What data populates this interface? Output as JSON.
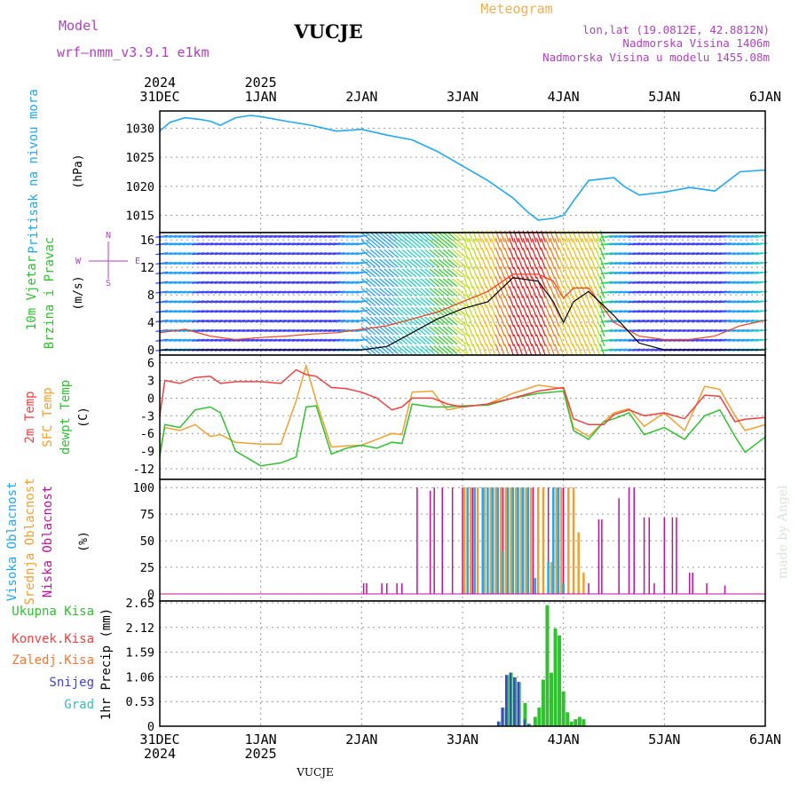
{
  "header": {
    "model_label": "Model",
    "model_name": "wrf–nmm_v3.9.1  e1km",
    "station": "VUCJE",
    "meteogram": "Meteogram",
    "lonlat": "lon,lat (19.0812E, 42.8812N)",
    "elevation": "Nadmorska Visina 1406m",
    "model_elevation": "Nadmorska Visina u modelu 1455.08m",
    "footer_station": "VUCJE",
    "credit": "made by Angel"
  },
  "colors": {
    "pressure": "#20a8f0",
    "wind_speed": "#000000",
    "gust": "#f04020",
    "temp2m": "#f04040",
    "sfc_temp": "#f0a030",
    "dewpoint": "#30c030",
    "high_cloud": "#20a8f0",
    "mid_cloud": "#f0a030",
    "low_cloud": "#c010a0",
    "total_precip": "#30c030",
    "conv_precip": "#f04040",
    "frz_precip": "#f07830",
    "snow": "#4040e0",
    "graupel": "#30c0c0",
    "title": "#000000",
    "purple_text": "#b040c0",
    "orange_text": "#f0b050"
  },
  "time_axis": {
    "top_ticks": [
      {
        "day": 0,
        "line1": "2024",
        "line2": "31DEC"
      },
      {
        "day": 1,
        "line1": "2025",
        "line2": "1JAN"
      },
      {
        "day": 2,
        "line1": "",
        "line2": "2JAN"
      },
      {
        "day": 3,
        "line1": "",
        "line2": "3JAN"
      },
      {
        "day": 4,
        "line1": "",
        "line2": "4JAN"
      },
      {
        "day": 5,
        "line1": "",
        "line2": "5JAN"
      },
      {
        "day": 6,
        "line1": "",
        "line2": "6JAN"
      }
    ],
    "bottom_ticks": [
      {
        "day": 0,
        "line1": "31DEC",
        "line2": "2024"
      },
      {
        "day": 1,
        "line1": "1JAN",
        "line2": "2025"
      },
      {
        "day": 2,
        "line1": "2JAN",
        "line2": ""
      },
      {
        "day": 3,
        "line1": "3JAN",
        "line2": ""
      },
      {
        "day": 4,
        "line1": "4JAN",
        "line2": ""
      },
      {
        "day": 5,
        "line1": "5JAN",
        "line2": ""
      },
      {
        "day": 6,
        "line1": "6JAN",
        "line2": ""
      }
    ]
  },
  "chart_data": [
    {
      "type": "line",
      "panel": "pressure",
      "labels": [
        "Pritisak na nivou mora"
      ],
      "unit": "(hPa)",
      "ylim": [
        1012.5,
        1032.5
      ],
      "yticks": [
        1015,
        1020,
        1025,
        1030
      ],
      "x": [
        0,
        0.1,
        0.25,
        0.4,
        0.5,
        0.6,
        0.75,
        0.9,
        1.0,
        1.25,
        1.5,
        1.75,
        2.0,
        2.25,
        2.5,
        2.75,
        3.0,
        3.25,
        3.5,
        3.65,
        3.75,
        3.9,
        4.0,
        4.1,
        4.25,
        4.5,
        4.6,
        4.75,
        5.0,
        5.25,
        5.5,
        5.75,
        6.0
      ],
      "series": [
        {
          "values": [
            1029.5,
            1031,
            1031.8,
            1031.5,
            1031.2,
            1030.5,
            1031.8,
            1032.2,
            1032,
            1031.2,
            1030.5,
            1029.5,
            1029.8,
            1028.8,
            1028,
            1026,
            1023.5,
            1021,
            1018,
            1015.5,
            1014.2,
            1014.5,
            1015,
            1017.5,
            1021,
            1021.5,
            1020,
            1018.5,
            1019,
            1019.8,
            1019.2,
            1022.5,
            1022.8
          ]
        }
      ]
    },
    {
      "type": "line",
      "panel": "wind",
      "labels": [
        "10m Vjetar",
        "Brzina i Pravac"
      ],
      "unit": "(m/s)",
      "ylim": [
        -0.5,
        16.8
      ],
      "yticks": [
        0,
        4,
        8,
        12,
        16
      ],
      "compass": [
        "N",
        "S",
        "W",
        "E"
      ],
      "x": [
        0,
        0.25,
        0.5,
        0.75,
        1.0,
        1.25,
        1.5,
        1.75,
        2.0,
        2.25,
        2.5,
        2.75,
        3.0,
        3.25,
        3.5,
        3.75,
        3.9,
        4.0,
        4.1,
        4.25,
        4.5,
        4.75,
        5.0,
        5.25,
        5.5,
        5.75,
        6.0
      ],
      "series": [
        {
          "values": [
            0,
            0,
            0,
            0,
            0,
            0,
            0,
            0,
            0,
            0.5,
            2.5,
            4.5,
            6,
            7,
            10.5,
            10,
            7,
            4,
            7,
            8.5,
            5,
            1,
            0,
            0,
            0,
            0,
            0
          ]
        },
        {
          "values": [
            2.5,
            3,
            2,
            1.5,
            1.8,
            2,
            2.3,
            2.5,
            3,
            3.5,
            4.5,
            5.5,
            7,
            8.5,
            11,
            11,
            10,
            7.5,
            9,
            9,
            4,
            2,
            1.5,
            1.5,
            2,
            3.5,
            4.3
          ]
        }
      ]
    },
    {
      "type": "line",
      "panel": "temperature",
      "labels": [
        "2m Temp",
        "SFC Temp",
        "dewpt Temp"
      ],
      "unit": "(C)",
      "ylim": [
        -13.5,
        7
      ],
      "yticks": [
        6,
        3,
        0,
        -3,
        -6,
        -9,
        -12
      ],
      "x": [
        0,
        0.05,
        0.2,
        0.35,
        0.5,
        0.6,
        0.75,
        1.0,
        1.2,
        1.35,
        1.45,
        1.55,
        1.7,
        1.85,
        2.0,
        2.15,
        2.3,
        2.4,
        2.5,
        2.7,
        2.85,
        3.0,
        3.25,
        3.5,
        3.75,
        4.0,
        4.1,
        4.25,
        4.4,
        4.5,
        4.65,
        4.8,
        5.0,
        5.2,
        5.4,
        5.55,
        5.7,
        5.8,
        6.0
      ],
      "series": [
        {
          "values": [
            -3,
            3,
            2.5,
            3.5,
            3.7,
            2.5,
            2.8,
            2.8,
            2.5,
            4.8,
            4,
            3.7,
            1.8,
            1.6,
            1,
            0,
            -2,
            -1.5,
            0,
            0,
            -1,
            -1.5,
            -1,
            0,
            1.2,
            1.8,
            -3.5,
            -4.5,
            -4.5,
            -2.8,
            -2,
            -3,
            -2.5,
            -3.5,
            0.5,
            0.3,
            -4,
            -3.6,
            -3.3
          ]
        },
        {
          "values": [
            -9,
            -5,
            -5.5,
            -4.5,
            -6.5,
            -6.2,
            -7.5,
            -7.8,
            -7.8,
            -0.5,
            5.5,
            -0.5,
            -8.3,
            -8.1,
            -8,
            -7,
            -6,
            -6.2,
            1,
            1.2,
            -2,
            -1.5,
            -1,
            0.8,
            2.2,
            1.6,
            -5,
            -6.5,
            -4,
            -2.5,
            -1.8,
            -4.8,
            -2.5,
            -5.5,
            2,
            1.5,
            -3,
            -5.5,
            -4.5
          ]
        },
        {
          "values": [
            -10,
            -4.5,
            -5,
            -2,
            -1.5,
            -2.5,
            -9,
            -11.5,
            -11,
            -10,
            -1.5,
            -1.3,
            -9.5,
            -8.5,
            -8,
            -8.5,
            -7.5,
            -7.7,
            -1,
            -1.5,
            -1.5,
            -1.3,
            -1.2,
            0,
            0.8,
            1.2,
            -5.5,
            -7,
            -4,
            -3.5,
            -2.5,
            -6.2,
            -5,
            -7,
            -3,
            -2,
            -6.5,
            -9.2,
            -6.6
          ]
        }
      ]
    },
    {
      "type": "bar",
      "panel": "clouds",
      "labels": [
        "Visoka Oblacnost",
        "Srednja Oblacnost",
        "Niska Oblacnost"
      ],
      "unit": "(%)",
      "ylim": [
        -5,
        101
      ],
      "yticks": [
        0,
        25,
        50,
        75,
        100
      ],
      "series": [
        {
          "name": "Visoka Oblacnost",
          "x": [
            3.05,
            3.12,
            3.2,
            3.25,
            3.3,
            3.35,
            3.4,
            3.45,
            3.5,
            3.55,
            3.6,
            3.65,
            3.72,
            3.85,
            3.9,
            3.95,
            4.0
          ],
          "values": [
            100,
            100,
            100,
            100,
            100,
            100,
            40,
            100,
            100,
            100,
            100,
            100,
            15,
            30,
            100,
            100,
            10
          ]
        },
        {
          "name": "Srednja Oblacnost",
          "x": [
            3.02,
            3.08,
            3.15,
            3.22,
            3.28,
            3.33,
            3.38,
            3.43,
            3.48,
            3.53,
            3.58,
            3.63,
            3.68,
            3.75,
            3.8,
            3.88,
            3.93,
            3.98,
            4.05,
            4.1,
            4.15,
            4.2
          ],
          "values": [
            100,
            100,
            100,
            100,
            100,
            100,
            100,
            100,
            100,
            100,
            100,
            100,
            100,
            100,
            100,
            30,
            100,
            100,
            100,
            100,
            58,
            20
          ]
        },
        {
          "name": "Niska Oblacnost",
          "x": [
            2.02,
            2.05,
            2.2,
            2.25,
            2.35,
            2.4,
            2.55,
            2.68,
            2.72,
            2.8,
            2.9,
            3.0,
            3.05,
            3.1,
            3.15,
            3.2,
            3.25,
            3.3,
            3.35,
            3.4,
            3.45,
            3.5,
            3.55,
            3.6,
            3.65,
            3.7,
            3.75,
            3.8,
            3.85,
            3.9,
            3.95,
            4.0,
            4.05,
            4.1,
            4.25,
            4.35,
            4.38,
            4.55,
            4.65,
            4.7,
            4.8,
            4.85,
            4.9,
            5.0,
            5.08,
            5.12,
            5.25,
            5.28,
            5.42,
            5.6
          ],
          "values": [
            10,
            10,
            10,
            10,
            10,
            10,
            100,
            97,
            100,
            100,
            100,
            100,
            100,
            100,
            100,
            100,
            100,
            100,
            100,
            100,
            100,
            100,
            100,
            100,
            100,
            100,
            100,
            100,
            100,
            100,
            100,
            100,
            100,
            100,
            10,
            70,
            70,
            90,
            100,
            100,
            72,
            72,
            10,
            72,
            72,
            72,
            20,
            20,
            10,
            8
          ]
        }
      ]
    },
    {
      "type": "bar",
      "panel": "precipitation",
      "labels": [
        "Ukupna Kisa",
        "Konvek.Kisa",
        "Zaledj.Kisa",
        "Snijeg",
        "Grad"
      ],
      "ylabel": "1hr Precip (mm)",
      "ylim": [
        0,
        2.65
      ],
      "yticks": [
        0,
        0.53,
        1.06,
        1.59,
        2.12,
        2.65
      ],
      "x": [
        3.36,
        3.4,
        3.44,
        3.48,
        3.52,
        3.56,
        3.62,
        3.66,
        3.72,
        3.76,
        3.8,
        3.84,
        3.88,
        3.92,
        3.96,
        4.0,
        4.04,
        4.08,
        4.12,
        4.16,
        4.2
      ],
      "series": [
        {
          "name": "Ukupna Kisa",
          "values": [
            0.1,
            0.4,
            1.1,
            1.15,
            1.05,
            0.95,
            0.5,
            0.05,
            0.2,
            0.4,
            1.0,
            2.6,
            1.15,
            2.1,
            1.95,
            0.75,
            0.3,
            0.1,
            0.15,
            0.2,
            0.15
          ]
        },
        {
          "name": "Snijeg",
          "values": [
            0.1,
            0.4,
            1.1,
            1.15,
            1.05,
            0.95,
            0.15,
            0.05,
            0,
            0,
            0,
            0,
            0,
            0,
            0,
            0,
            0,
            0,
            0,
            0,
            0
          ]
        }
      ]
    }
  ]
}
